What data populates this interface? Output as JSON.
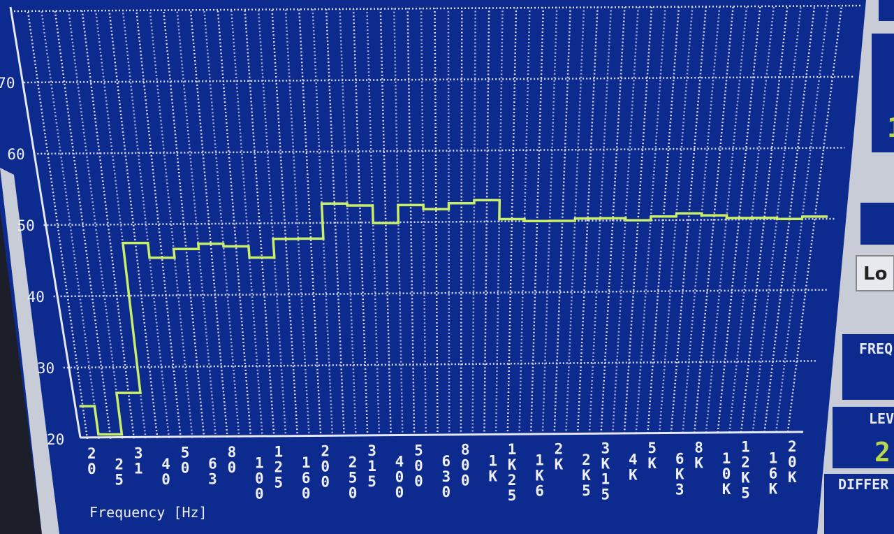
{
  "chart_data": {
    "type": "line",
    "xlabel": "Frequency [Hz]",
    "ylabel": "",
    "ylim": [
      20,
      80
    ],
    "y_ticks": [
      "20",
      "30",
      "40",
      "50",
      "60",
      "70"
    ],
    "categories": [
      "20",
      "25",
      "31",
      "40",
      "50",
      "63",
      "80",
      "100",
      "125",
      "160",
      "200",
      "250",
      "315",
      "400",
      "500",
      "630",
      "800",
      "1K",
      "1K25",
      "1K6",
      "2K",
      "2K5",
      "3K15",
      "4K",
      "5K",
      "6K3",
      "8K",
      "10K",
      "12K5",
      "16K",
      "20K"
    ],
    "x_tick_labels": [
      "2\n0",
      "2\n5",
      "3\n1",
      "4\n0",
      "5\n0",
      "6\n3",
      "8\n0",
      "1\n0\n0",
      "1\n2\n5",
      "1\n6\n0",
      "2\n0\n0",
      "2\n5\n0",
      "3\n1\n5",
      "4\n0\n0",
      "5\n0\n0",
      "6\n3\n0",
      "8\n0\n0",
      "1\nK",
      "1\nK\n2\n5",
      "1\nK\n6",
      "2\nK",
      "2\nK\n5",
      "3\nK\n1\n5",
      "4\nK",
      "5\nK",
      "6\nK\n3",
      "8\nK",
      "1\n0\nK",
      "1\n2\nK\n5",
      "1\n6\nK",
      "2\n0\nK"
    ],
    "series": [
      {
        "color": "#c9ee6a",
        "step": true,
        "values": [
          24.6,
          20.6,
          26.4,
          47.4,
          45.3,
          46.5,
          47.2,
          46.8,
          45.2,
          47.8,
          47.8,
          52.7,
          52.4,
          49.9,
          52.4,
          51.8,
          52.6,
          53.0,
          50.3,
          50.0,
          50.0,
          50.3,
          50.3,
          50.0,
          50.5,
          50.9,
          50.6,
          50.2,
          50.2,
          50.0,
          50.3
        ]
      }
    ],
    "grid": true,
    "minor_vertical_grid": true
  },
  "side_panel": {
    "button_label": "Lo",
    "freq_label": "FREQ",
    "level_label": "LEV",
    "level_value": "2",
    "diff_label": "DIFFER"
  }
}
